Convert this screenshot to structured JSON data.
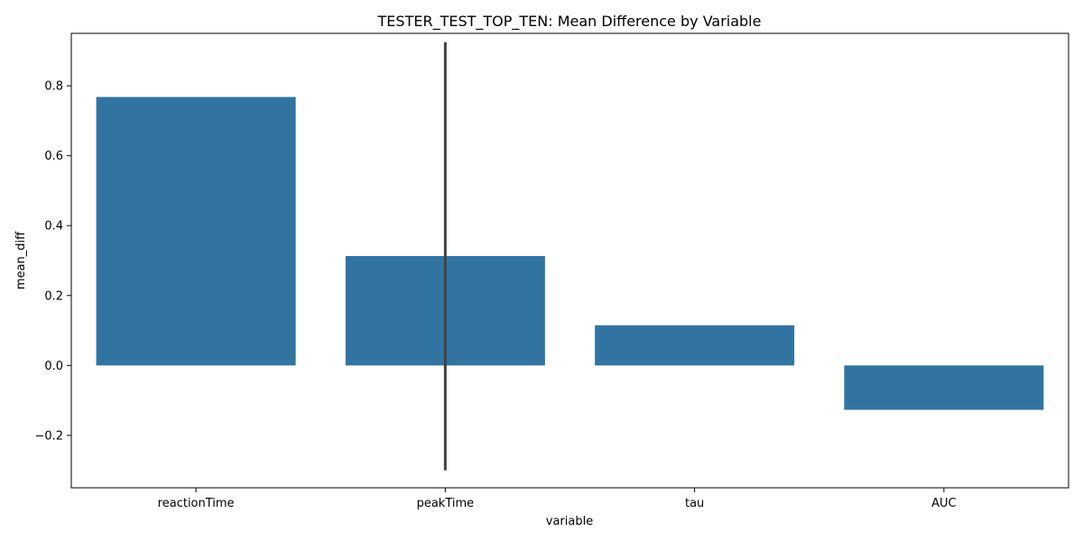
{
  "chart_data": {
    "type": "bar",
    "title": "TESTER_TEST_TOP_TEN: Mean Difference by Variable",
    "xlabel": "variable",
    "ylabel": "mean_diff",
    "categories": [
      "reactionTime",
      "peakTime",
      "tau",
      "AUC"
    ],
    "values": [
      0.768,
      0.313,
      0.115,
      -0.127
    ],
    "error_bars": [
      null,
      [
        -0.3,
        0.925
      ],
      null,
      null
    ],
    "ylim": [
      -0.35,
      0.95
    ],
    "yticks": [
      -0.2,
      0.0,
      0.2,
      0.4,
      0.6,
      0.8
    ],
    "ytick_labels": [
      "−0.2",
      "0.0",
      "0.2",
      "0.4",
      "0.6",
      "0.8"
    ],
    "bar_color": "#3274a1",
    "error_color": "#424242",
    "grid": false
  }
}
